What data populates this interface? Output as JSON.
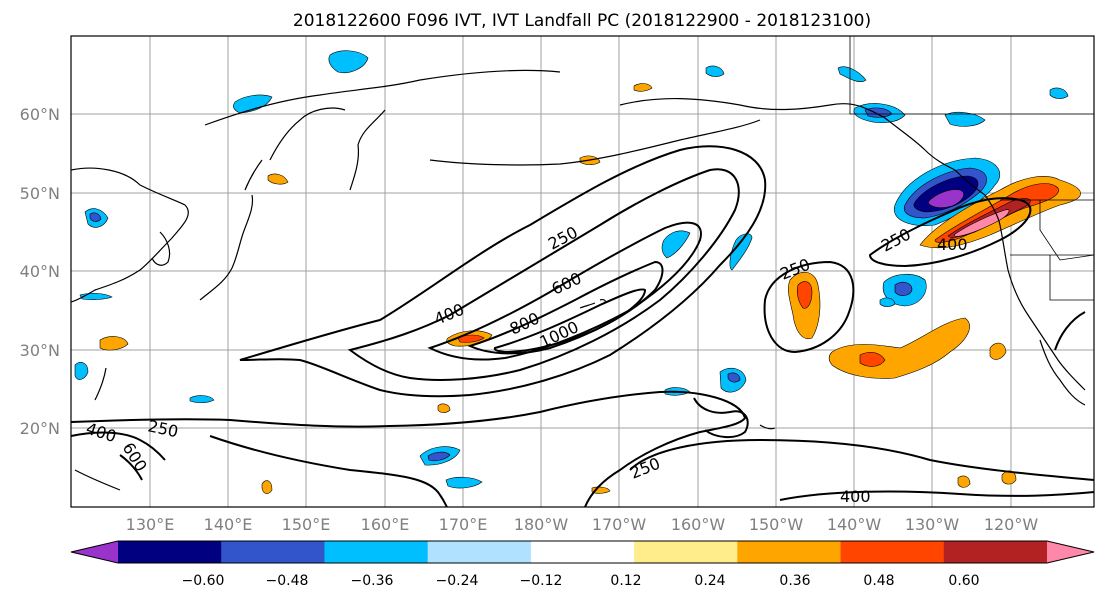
{
  "title": "2018122600 F096 IVT, IVT Landfall PC (2018122900 - 2018123100)",
  "lat_labels": [
    "60°N",
    "50°N",
    "40°N",
    "30°N",
    "20°N"
  ],
  "lon_labels": [
    "130°E",
    "140°E",
    "150°E",
    "160°E",
    "170°E",
    "180°W",
    "170°W",
    "160°W",
    "150°W",
    "140°W",
    "130°W",
    "120°W"
  ],
  "contour_labels": [
    "250",
    "400",
    "600",
    "800",
    "1000",
    "250",
    "250",
    "400",
    "250",
    "400",
    "600",
    "250",
    "400"
  ],
  "colorbar": {
    "colors": [
      "#9933cc",
      "#000080",
      "#3355cc",
      "#00bfff",
      "#b0e2ff",
      "#ffffff",
      "#ffec8b",
      "#ffa500",
      "#ff4500",
      "#b22222",
      "#ff88aa"
    ],
    "tick_labels": [
      "−0.60",
      "−0.48",
      "−0.36",
      "−0.24",
      "−0.12",
      "0.12",
      "0.24",
      "0.36",
      "0.48",
      "0.60"
    ]
  }
}
